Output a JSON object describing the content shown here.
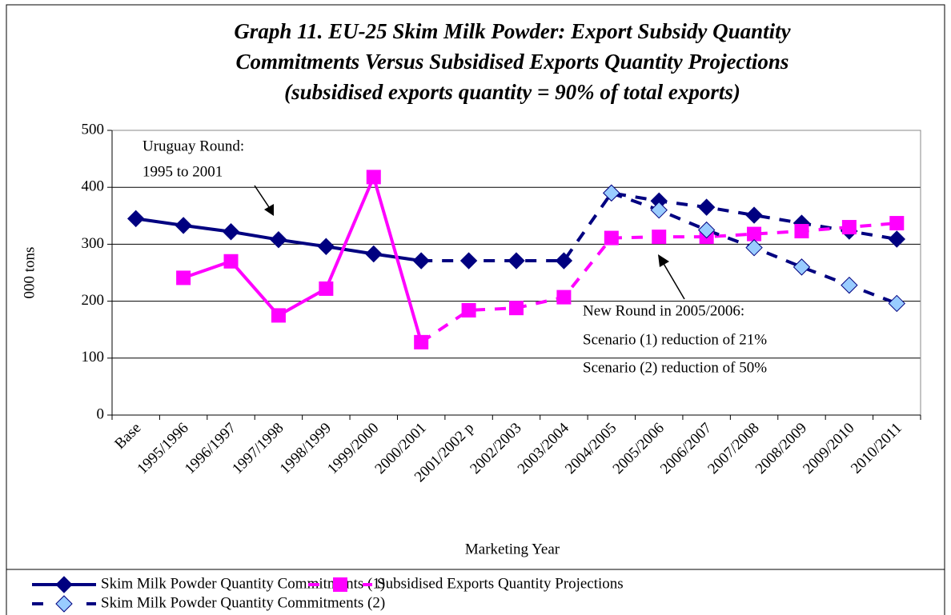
{
  "chart_data": {
    "type": "line",
    "title": [
      "Graph 11. EU-25 Skim Milk Powder: Export Subsidy Quantity",
      "Commitments Versus Subsidised Exports Quantity Projections",
      "(subsidised exports quantity = 90% of total exports)"
    ],
    "y_label": "000 tons",
    "x_label": "Marketing Year",
    "categories": [
      "Base",
      "1995/1996",
      "1996/1997",
      "1997/1998",
      "1998/1999",
      "1999/2000",
      "2000/2001",
      "2001/2002 p",
      "2002/2003",
      "2003/2004",
      "2004/2005",
      "2005/2006",
      "2006/2007",
      "2007/2008",
      "2008/2009",
      "2009/2010",
      "2010/2011"
    ],
    "series": [
      {
        "name": "Skim Milk Powder Quantity Commitments (1)",
        "color": "#000080",
        "marker": "diamond",
        "marker_fill": "#000080",
        "dashed_from": 6,
        "values": [
          345,
          333,
          322,
          308,
          296,
          283,
          271,
          271,
          271,
          271,
          390,
          376,
          365,
          351,
          337,
          323,
          309
        ]
      },
      {
        "name": "Subsidised Exports Quantity Projections",
        "color": "#ff00ff",
        "marker": "square",
        "marker_fill": "#ff00ff",
        "dashed_from": 6,
        "values": [
          null,
          241,
          270,
          175,
          222,
          418,
          128,
          184,
          188,
          207,
          311,
          313,
          313,
          318,
          323,
          330,
          337
        ]
      },
      {
        "name": "Skim Milk Powder Quantity Commitments (2)",
        "color": "#000080",
        "marker": "diamond",
        "marker_fill": "#99ccff",
        "dashed_from": 0,
        "values": [
          null,
          null,
          null,
          null,
          null,
          null,
          null,
          null,
          null,
          null,
          390,
          360,
          325,
          294,
          260,
          228,
          196
        ]
      }
    ],
    "ylim": [
      0,
      500
    ],
    "yticks": [
      0,
      100,
      200,
      300,
      400,
      500
    ],
    "grid": true,
    "annotations": [
      [
        "Uruguay Round:",
        "1995 to 2001"
      ],
      [
        "New Round in 2005/2006:",
        "Scenario (1) reduction of 21%",
        "Scenario (2) reduction of 50%"
      ]
    ]
  }
}
